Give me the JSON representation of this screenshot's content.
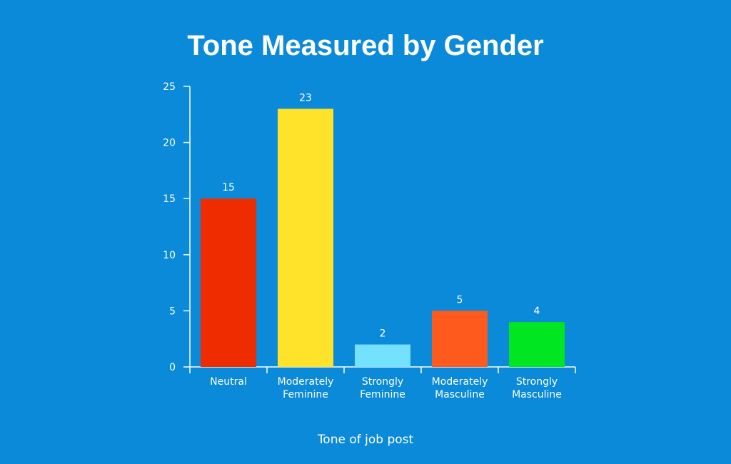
{
  "chart_data": {
    "type": "bar",
    "title": "Tone Measured by Gender",
    "xlabel": "Tone of job post",
    "ylabel": "",
    "categories": [
      [
        "Neutral"
      ],
      [
        "Moderately",
        "Feminine"
      ],
      [
        "Strongly",
        "Feminine"
      ],
      [
        "Moderately",
        "Masculine"
      ],
      [
        "Strongly",
        "Masculine"
      ]
    ],
    "values": [
      15,
      23,
      2,
      5,
      4
    ],
    "bar_colors": [
      "#ef2c00",
      "#ffe32a",
      "#74e2ff",
      "#ff5a1d",
      "#00e620"
    ],
    "ylim": [
      0,
      25
    ],
    "yticks": [
      0,
      5,
      10,
      15,
      20,
      25
    ],
    "grid": false,
    "legend": "none",
    "data_labels": true
  },
  "colors": {
    "background": "#0a8ad8",
    "axis": "#ffffff",
    "text": "#ffffff"
  }
}
